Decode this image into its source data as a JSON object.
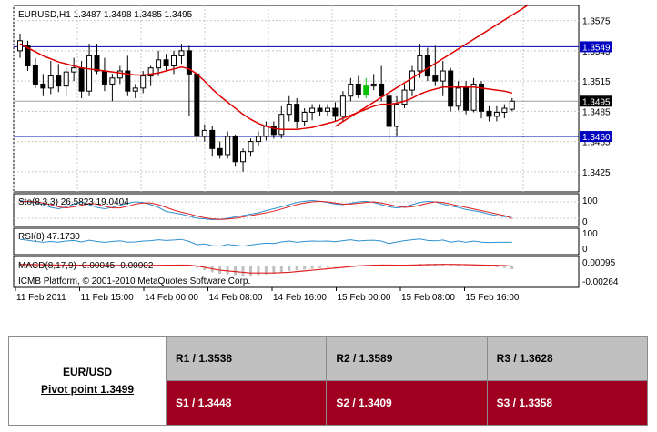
{
  "main_chart": {
    "header": "EURUSD,H1  1.3487 1.3498 1.3485 1.3495",
    "price_ticks": [
      "1.3575",
      "1.3545",
      "1.3515",
      "1.3485",
      "1.3455",
      "1.3425"
    ],
    "resistance_label": "1.3549",
    "current_label": "1.3495",
    "support_label": "1.3460",
    "watermark": "ICMB Platform, © 2001-2010 MetaQuotes Software Corp."
  },
  "stochastic": {
    "label": "Sto(8,3,3) 26.5823 19.0404",
    "ticks": [
      "100",
      "0"
    ]
  },
  "rsi": {
    "label": "RSI(8) 47.1730",
    "ticks": [
      "100",
      "0"
    ]
  },
  "macd": {
    "label": "MACD(8,17,9) -0.00045 -0.00002",
    "ticks": [
      "0.00095",
      "-0.00264"
    ]
  },
  "time_axis": [
    "11 Feb 2011",
    "11 Feb 15:00",
    "14 Feb 00:00",
    "14 Feb 08:00",
    "14 Feb 16:00",
    "15 Feb 00:00",
    "15 Feb 08:00",
    "15 Feb 16:00"
  ],
  "pivot_table": {
    "pair": "EUR/USD",
    "pivot": "Pivot point 1.3499",
    "r1": "R1 / 1.3538",
    "r2": "R2 / 1.3589",
    "r3": "R3 / 1.3628",
    "s1": "S1 / 1.3448",
    "s2": "S2 / 1.3409",
    "s3": "S3 / 1.3358"
  },
  "colors": {
    "bull": "#ffffff",
    "bear": "#000000",
    "ma": "#e00000",
    "hline": "#0000c0",
    "grid": "#c8c8c8",
    "stoch_main": "#3090d0",
    "stoch_signal": "#e02020",
    "rsi": "#3090d0",
    "macd_hist": "#c0c0c0",
    "macd_signal": "#e02020",
    "highlight_candle": "#00c000"
  },
  "chart_data": {
    "type": "candlestick",
    "symbol": "EURUSD",
    "timeframe": "H1",
    "ylim": [
      1.3405,
      1.359
    ],
    "candles": [
      {
        "o": 1.3545,
        "h": 1.3562,
        "l": 1.3538,
        "c": 1.3555
      },
      {
        "o": 1.355,
        "h": 1.3555,
        "l": 1.3525,
        "c": 1.353
      },
      {
        "o": 1.353,
        "h": 1.3538,
        "l": 1.3508,
        "c": 1.3512
      },
      {
        "o": 1.3512,
        "h": 1.3522,
        "l": 1.35,
        "c": 1.3508
      },
      {
        "o": 1.3508,
        "h": 1.3535,
        "l": 1.3502,
        "c": 1.352
      },
      {
        "o": 1.352,
        "h": 1.3532,
        "l": 1.3504,
        "c": 1.351
      },
      {
        "o": 1.351,
        "h": 1.3528,
        "l": 1.35,
        "c": 1.3524
      },
      {
        "o": 1.3524,
        "h": 1.3538,
        "l": 1.3515,
        "c": 1.3528
      },
      {
        "o": 1.3528,
        "h": 1.3535,
        "l": 1.3498,
        "c": 1.3505
      },
      {
        "o": 1.3505,
        "h": 1.3552,
        "l": 1.35,
        "c": 1.354
      },
      {
        "o": 1.354,
        "h": 1.3552,
        "l": 1.3522,
        "c": 1.3525
      },
      {
        "o": 1.3525,
        "h": 1.3538,
        "l": 1.3505,
        "c": 1.3512
      },
      {
        "o": 1.3512,
        "h": 1.3522,
        "l": 1.3495,
        "c": 1.3518
      },
      {
        "o": 1.3518,
        "h": 1.353,
        "l": 1.3512,
        "c": 1.3525
      },
      {
        "o": 1.3525,
        "h": 1.354,
        "l": 1.35,
        "c": 1.3505
      },
      {
        "o": 1.3505,
        "h": 1.3512,
        "l": 1.3498,
        "c": 1.3508
      },
      {
        "o": 1.3508,
        "h": 1.3525,
        "l": 1.3503,
        "c": 1.352
      },
      {
        "o": 1.352,
        "h": 1.353,
        "l": 1.351,
        "c": 1.3528
      },
      {
        "o": 1.3528,
        "h": 1.3545,
        "l": 1.352,
        "c": 1.3536
      },
      {
        "o": 1.3536,
        "h": 1.3542,
        "l": 1.3525,
        "c": 1.353
      },
      {
        "o": 1.353,
        "h": 1.3545,
        "l": 1.3522,
        "c": 1.354
      },
      {
        "o": 1.354,
        "h": 1.3552,
        "l": 1.3532,
        "c": 1.3545
      },
      {
        "o": 1.3545,
        "h": 1.355,
        "l": 1.348,
        "c": 1.3522
      },
      {
        "o": 1.3522,
        "h": 1.3525,
        "l": 1.3455,
        "c": 1.346
      },
      {
        "o": 1.346,
        "h": 1.3472,
        "l": 1.3455,
        "c": 1.3466
      },
      {
        "o": 1.3466,
        "h": 1.347,
        "l": 1.344,
        "c": 1.3448
      },
      {
        "o": 1.3448,
        "h": 1.3455,
        "l": 1.3438,
        "c": 1.3442
      },
      {
        "o": 1.3442,
        "h": 1.3465,
        "l": 1.3438,
        "c": 1.346
      },
      {
        "o": 1.346,
        "h": 1.3462,
        "l": 1.343,
        "c": 1.3435
      },
      {
        "o": 1.3435,
        "h": 1.3448,
        "l": 1.3425,
        "c": 1.3445
      },
      {
        "o": 1.3445,
        "h": 1.3458,
        "l": 1.344,
        "c": 1.3455
      },
      {
        "o": 1.3455,
        "h": 1.3465,
        "l": 1.345,
        "c": 1.346
      },
      {
        "o": 1.346,
        "h": 1.3475,
        "l": 1.3456,
        "c": 1.347
      },
      {
        "o": 1.347,
        "h": 1.3475,
        "l": 1.3458,
        "c": 1.3462
      },
      {
        "o": 1.3462,
        "h": 1.349,
        "l": 1.3458,
        "c": 1.3482
      },
      {
        "o": 1.3482,
        "h": 1.35,
        "l": 1.3475,
        "c": 1.3492
      },
      {
        "o": 1.3492,
        "h": 1.3498,
        "l": 1.3468,
        "c": 1.3475
      },
      {
        "o": 1.3475,
        "h": 1.3488,
        "l": 1.347,
        "c": 1.3484
      },
      {
        "o": 1.3484,
        "h": 1.3492,
        "l": 1.3476,
        "c": 1.3488
      },
      {
        "o": 1.3488,
        "h": 1.3492,
        "l": 1.348,
        "c": 1.3485
      },
      {
        "o": 1.3485,
        "h": 1.3492,
        "l": 1.348,
        "c": 1.3488
      },
      {
        "o": 1.3488,
        "h": 1.3494,
        "l": 1.3475,
        "c": 1.348
      },
      {
        "o": 1.348,
        "h": 1.3505,
        "l": 1.3475,
        "c": 1.35
      },
      {
        "o": 1.35,
        "h": 1.3518,
        "l": 1.3495,
        "c": 1.3512
      },
      {
        "o": 1.3512,
        "h": 1.352,
        "l": 1.3498,
        "c": 1.3502
      },
      {
        "o": 1.3502,
        "h": 1.3518,
        "l": 1.3498,
        "c": 1.351
      },
      {
        "o": 1.351,
        "h": 1.3522,
        "l": 1.3506,
        "c": 1.3512
      },
      {
        "o": 1.3512,
        "h": 1.353,
        "l": 1.3495,
        "c": 1.35
      },
      {
        "o": 1.35,
        "h": 1.3505,
        "l": 1.3455,
        "c": 1.347
      },
      {
        "o": 1.347,
        "h": 1.35,
        "l": 1.346,
        "c": 1.3492
      },
      {
        "o": 1.3492,
        "h": 1.3512,
        "l": 1.3488,
        "c": 1.3506
      },
      {
        "o": 1.3506,
        "h": 1.353,
        "l": 1.35,
        "c": 1.3525
      },
      {
        "o": 1.3525,
        "h": 1.3552,
        "l": 1.3518,
        "c": 1.354
      },
      {
        "o": 1.354,
        "h": 1.3548,
        "l": 1.3515,
        "c": 1.352
      },
      {
        "o": 1.352,
        "h": 1.355,
        "l": 1.351,
        "c": 1.3515
      },
      {
        "o": 1.3515,
        "h": 1.3535,
        "l": 1.35,
        "c": 1.3525
      },
      {
        "o": 1.3525,
        "h": 1.3528,
        "l": 1.3485,
        "c": 1.349
      },
      {
        "o": 1.349,
        "h": 1.3515,
        "l": 1.3486,
        "c": 1.3508
      },
      {
        "o": 1.3508,
        "h": 1.3515,
        "l": 1.3482,
        "c": 1.3486
      },
      {
        "o": 1.3486,
        "h": 1.3518,
        "l": 1.3484,
        "c": 1.3512
      },
      {
        "o": 1.3512,
        "h": 1.3515,
        "l": 1.3478,
        "c": 1.3485
      },
      {
        "o": 1.3485,
        "h": 1.349,
        "l": 1.3475,
        "c": 1.348
      },
      {
        "o": 1.348,
        "h": 1.349,
        "l": 1.3475,
        "c": 1.3484
      },
      {
        "o": 1.3484,
        "h": 1.3492,
        "l": 1.3478,
        "c": 1.3488
      },
      {
        "o": 1.3487,
        "h": 1.3498,
        "l": 1.3485,
        "c": 1.3495
      }
    ],
    "highlight_candle_index": 45,
    "moving_average": [
      1.3552,
      1.3548,
      1.3544,
      1.354,
      1.3537,
      1.3534,
      1.3532,
      1.353,
      1.3528,
      1.3527,
      1.3526,
      1.3525,
      1.3524,
      1.3523,
      1.3522,
      1.3521,
      1.3521,
      1.3522,
      1.3523,
      1.3525,
      1.3527,
      1.3529,
      1.3527,
      1.3522,
      1.3515,
      1.3507,
      1.35,
      1.3494,
      1.3488,
      1.3482,
      1.3477,
      1.3473,
      1.347,
      1.3468,
      1.3467,
      1.3467,
      1.3467,
      1.3468,
      1.3469,
      1.3471,
      1.3473,
      1.3475,
      1.3478,
      1.3481,
      1.3484,
      1.3487,
      1.349,
      1.3492,
      1.3492,
      1.3493,
      1.3495,
      1.3498,
      1.3502,
      1.3505,
      1.3507,
      1.3509,
      1.3509,
      1.3509,
      1.3509,
      1.3509,
      1.3508,
      1.3507,
      1.3506,
      1.3505,
      1.3503
    ],
    "trendline": [
      [
        41,
        1.347
      ],
      [
        66,
        1.359
      ]
    ],
    "hlines": [
      1.3549,
      1.3495,
      1.346
    ],
    "stochastic": {
      "ylim": [
        0,
        100
      ],
      "main": [
        85,
        80,
        78,
        70,
        60,
        55,
        62,
        72,
        80,
        70,
        60,
        55,
        60,
        68,
        75,
        80,
        78,
        70,
        60,
        45,
        40,
        35,
        28,
        20,
        18,
        15,
        16,
        20,
        25,
        30,
        35,
        40,
        48,
        55,
        62,
        70,
        78,
        82,
        85,
        82,
        78,
        72,
        70,
        75,
        80,
        82,
        78,
        70,
        62,
        58,
        62,
        70,
        78,
        82,
        80,
        72,
        65,
        60,
        52,
        48,
        42,
        35,
        30,
        26,
        27
      ],
      "signal": [
        80,
        82,
        80,
        76,
        70,
        62,
        58,
        62,
        68,
        74,
        72,
        64,
        58,
        58,
        64,
        72,
        76,
        76,
        70,
        60,
        50,
        42,
        36,
        28,
        22,
        18,
        16,
        17,
        20,
        25,
        30,
        35,
        40,
        46,
        54,
        62,
        70,
        76,
        80,
        82,
        80,
        76,
        72,
        72,
        75,
        78,
        80,
        76,
        70,
        64,
        60,
        62,
        68,
        75,
        80,
        78,
        72,
        66,
        60,
        54,
        48,
        42,
        36,
        30,
        19
      ]
    },
    "rsi": {
      "ylim": [
        0,
        100
      ],
      "values": [
        60,
        56,
        50,
        46,
        50,
        47,
        52,
        55,
        48,
        56,
        50,
        46,
        50,
        53,
        47,
        48,
        52,
        54,
        58,
        55,
        57,
        60,
        50,
        35,
        38,
        30,
        28,
        36,
        32,
        28,
        33,
        38,
        42,
        40,
        48,
        52,
        46,
        50,
        52,
        51,
        52,
        49,
        54,
        58,
        52,
        55,
        56,
        52,
        40,
        48,
        54,
        58,
        62,
        55,
        53,
        57,
        47,
        52,
        46,
        52,
        47,
        45,
        46,
        46,
        47
      ]
    },
    "macd": {
      "ylim": [
        -0.00264,
        0.00095
      ],
      "histogram": [
        0.0003,
        0.00025,
        0.0002,
        0.00015,
        0.0001,
        5e-05,
        5e-05,
        0.0001,
        0.0001,
        0.00015,
        0.0001,
        5e-05,
        0.0,
        0.0,
        5e-05,
        0.0001,
        0.0001,
        0.0001,
        0.00012,
        0.00012,
        0.00015,
        0.00018,
        5e-05,
        -0.0003,
        -0.0006,
        -0.0009,
        -0.0011,
        -0.0012,
        -0.0013,
        -0.0014,
        -0.0014,
        -0.0013,
        -0.0012,
        -0.0011,
        -0.0009,
        -0.0007,
        -0.0006,
        -0.0005,
        -0.0004,
        -0.0003,
        -0.0002,
        -0.00015,
        -5e-05,
        5e-05,
        0.0001,
        0.00015,
        0.0002,
        0.0002,
        0.0001,
        5e-05,
        0.0001,
        0.0002,
        0.0003,
        0.0003,
        0.0003,
        0.0003,
        0.0002,
        0.0002,
        0.0001,
        0.0001,
        0.0,
        -0.0001,
        -0.0002,
        -0.0003,
        -0.00045
      ],
      "signal": [
        0.0002,
        0.0002,
        0.00018,
        0.00016,
        0.00014,
        0.00012,
        0.0001,
        0.0001,
        0.0001,
        0.0001,
        0.0001,
        9e-05,
        8e-05,
        7e-05,
        7e-05,
        7e-05,
        8e-05,
        8e-05,
        9e-05,
        0.0001,
        0.00011,
        0.00012,
        0.0001,
        0.0,
        -0.0002,
        -0.0004,
        -0.0006,
        -0.0007,
        -0.0008,
        -0.0009,
        -0.001,
        -0.001,
        -0.001,
        -0.001,
        -0.00095,
        -0.0009,
        -0.0008,
        -0.0007,
        -0.0006,
        -0.0005,
        -0.0004,
        -0.0003,
        -0.0002,
        -0.0001,
        0.0,
        5e-05,
        0.0001,
        0.00012,
        0.00012,
        0.0001,
        0.0001,
        0.00012,
        0.00015,
        0.00018,
        0.0002,
        0.00022,
        0.00022,
        0.0002,
        0.00018,
        0.00015,
        0.00012,
        0.0001,
        8e-05,
        5e-05,
        -2e-05
      ]
    }
  }
}
